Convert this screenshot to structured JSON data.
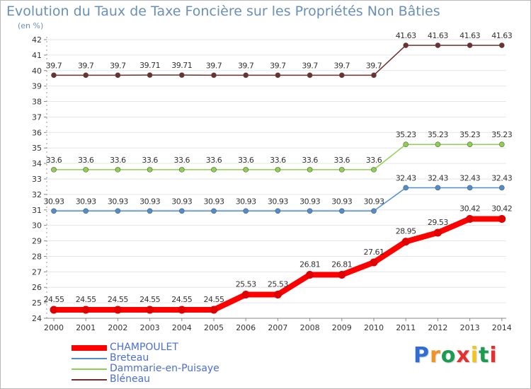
{
  "title": "Evolution du Taux de Taxe Foncière sur les Propriétés Non Bâties",
  "unit_label": "(en %)",
  "logo": {
    "text": "Proxiti",
    "letter_colors": [
      "#2f6cd4",
      "#f19224",
      "#1c9c52",
      "#e53030",
      "#f3c319",
      "#1c9c52",
      "#e53030"
    ]
  },
  "chart_data": {
    "type": "line",
    "x": [
      "2000",
      "2001",
      "2002",
      "2003",
      "2004",
      "2005",
      "2006",
      "2007",
      "2008",
      "2009",
      "2010",
      "2011",
      "2012",
      "2013",
      "2014"
    ],
    "ylim": [
      24,
      42
    ],
    "yticks": [
      24,
      25,
      26,
      27,
      28,
      29,
      30,
      31,
      32,
      33,
      34,
      35,
      36,
      37,
      38,
      39,
      40,
      41,
      42
    ],
    "grid": "horizontal",
    "legend_position": "bottom-left",
    "series": [
      {
        "name": "CHAMPOULET",
        "color": "#ff0000",
        "values": [
          24.55,
          24.55,
          24.55,
          24.55,
          24.55,
          24.55,
          25.53,
          25.53,
          26.81,
          26.81,
          27.61,
          28.95,
          29.53,
          30.42,
          30.42
        ],
        "labels": [
          "24.55",
          "24.55",
          "24.55",
          "24.55",
          "24.55",
          "24.55",
          "25.53",
          "25.53",
          "26.81",
          "26.81",
          "27.61",
          "28.95",
          "29.53",
          "30.42",
          "30.42"
        ]
      },
      {
        "name": "Breteau",
        "color": "#4f8fd0",
        "values": [
          30.93,
          30.93,
          30.93,
          30.93,
          30.93,
          30.93,
          30.93,
          30.93,
          30.93,
          30.93,
          30.93,
          32.43,
          32.43,
          32.43,
          32.43
        ],
        "labels": [
          "30.93",
          "30.93",
          "30.93",
          "30.93",
          "30.93",
          "30.93",
          "30.93",
          "30.93",
          "30.93",
          "30.93",
          "30.93",
          "32.43",
          "32.43",
          "32.43",
          "32.43"
        ]
      },
      {
        "name": "Dammarie-en-Puisaye",
        "color": "#8ed14f",
        "values": [
          33.6,
          33.6,
          33.6,
          33.6,
          33.6,
          33.6,
          33.6,
          33.6,
          33.6,
          33.6,
          33.6,
          35.23,
          35.23,
          35.23,
          35.23
        ],
        "labels": [
          "33.6",
          "33.6",
          "33.6",
          "33.6",
          "33.6",
          "33.6",
          "33.6",
          "33.6",
          "33.6",
          "33.6",
          "33.6",
          "35.23",
          "35.23",
          "35.23",
          "35.23"
        ]
      },
      {
        "name": "Bléneau",
        "color": "#6e2f2f",
        "values": [
          39.7,
          39.7,
          39.7,
          39.71,
          39.71,
          39.7,
          39.7,
          39.7,
          39.7,
          39.7,
          39.7,
          41.63,
          41.63,
          41.63,
          41.63
        ],
        "labels": [
          "39.7",
          "39.7",
          "39.7",
          "39.71",
          "39.71",
          "39.7",
          "39.7",
          "39.7",
          "39.7",
          "39.7",
          "39.7",
          "41.63",
          "41.63",
          "41.63",
          "41.63"
        ]
      }
    ]
  }
}
